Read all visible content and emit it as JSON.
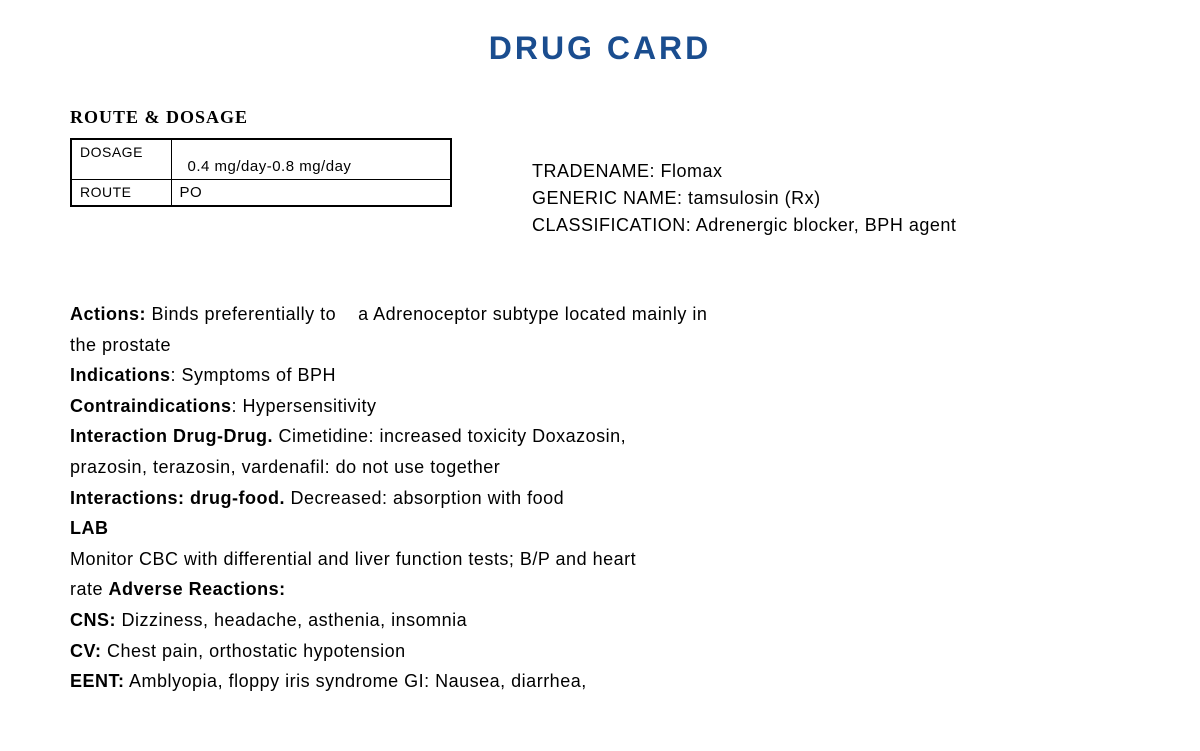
{
  "title": "DRUG CARD",
  "sectionHeader": "ROUTE & DOSAGE",
  "table": {
    "dosageLabel": "DOSAGE",
    "dosageValue": "0.4 mg/day-0.8 mg/day",
    "routeLabel": "ROUTE",
    "routeValue": "PO"
  },
  "info": {
    "tradenameLabel": "TRADENAME:",
    "tradenameValue": "Flomax",
    "genericLabel": "GENERIC NAME:",
    "genericValue": "tamsulosin (Rx)",
    "classificationLabel": "CLASSIFICATION:",
    "classificationValue": "Adrenergic blocker, BPH agent"
  },
  "body": {
    "actionsLabel": "Actions:",
    "actionsText1": "Binds preferentially to ",
    "actionsText2": " a Adrenoceptor subtype located mainly in",
    "actionsText3": "the prostate",
    "indicationsLabel": "Indications",
    "indicationsText": ": Symptoms of BPH",
    "contraindicationsLabel": "Contraindications",
    "contraindicationsText": ": Hypersensitivity",
    "interactionDDLabel": " Interaction Drug-Drug.",
    "interactionDDText1": " Cimetidine: increased toxicity Doxazosin,",
    "interactionDDText2": "prazosin, terazosin, vardenafil: do not use together",
    "interactionDFLabel": "Interactions: drug-food.",
    "interactionDFText": " Decreased: absorption with food",
    "labLabel": " LAB",
    "labText1": "Monitor CBC with differential and liver function tests; B/P and heart",
    "labText2": "rate ",
    "adverseLabel": "Adverse Reactions:",
    "cnsLabel": "CNS:",
    "cnsText": " Dizziness, headache, asthenia, insomnia",
    "cvLabel": "CV:",
    "cvText": " Chest pain, orthostatic hypotension",
    "eentLabel": "EENT:",
    "eentText": " Amblyopia, floppy iris syndrome GI: Nausea, diarrhea,"
  },
  "colors": {
    "titleColor": "#1a4d8f",
    "textColor": "#000000",
    "background": "#ffffff",
    "tableBorder": "#000000"
  },
  "typography": {
    "titleFontSize": 32,
    "sectionHeaderFontSize": 18,
    "bodyFontSize": 18,
    "tableFontSize": 15
  }
}
